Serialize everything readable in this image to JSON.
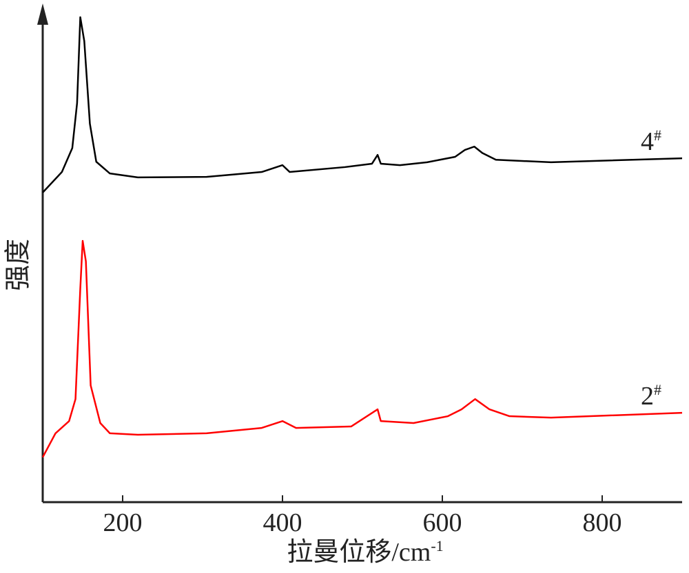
{
  "chart_data": {
    "type": "line",
    "xlabel": "拉曼位移/cm",
    "xlabel_superscript": "-1",
    "ylabel": "强度",
    "xlim": [
      100,
      900
    ],
    "xticks": [
      200,
      400,
      600,
      800
    ],
    "ylim": [
      0,
      100
    ],
    "series": [
      {
        "name": "4",
        "name_superscript": "#",
        "color": "#000000",
        "x": [
          100,
          124,
          137,
          143,
          147,
          152,
          159,
          167,
          184,
          219,
          305,
          374,
          400,
          409,
          478,
          512,
          519,
          523,
          547,
          581,
          616,
          628,
          640,
          650,
          667,
          736,
          900
        ],
        "values": [
          63.4,
          67.6,
          72.5,
          81.7,
          99.3,
          94.4,
          77.5,
          69.7,
          67.3,
          66.5,
          66.6,
          67.6,
          69.0,
          67.6,
          68.6,
          69.3,
          71.1,
          69.3,
          69.0,
          69.6,
          70.7,
          72.1,
          72.8,
          71.5,
          70.1,
          69.6,
          70.4
        ]
      },
      {
        "name": "2",
        "name_superscript": "#",
        "color": "#ff0000",
        "x": [
          100,
          116,
          133,
          141,
          147,
          150,
          154,
          160,
          172,
          184,
          219,
          305,
          374,
          400,
          417,
          486,
          519,
          523,
          564,
          607,
          624,
          641,
          659,
          684,
          736,
          900
        ],
        "values": [
          9.2,
          14.1,
          16.6,
          21.1,
          43.7,
          53.5,
          49.3,
          23.9,
          16.2,
          14.1,
          13.8,
          14.1,
          15.2,
          16.6,
          15.2,
          15.5,
          19.0,
          16.6,
          16.2,
          17.6,
          19.0,
          21.1,
          19.0,
          17.6,
          17.3,
          18.3
        ]
      }
    ]
  }
}
